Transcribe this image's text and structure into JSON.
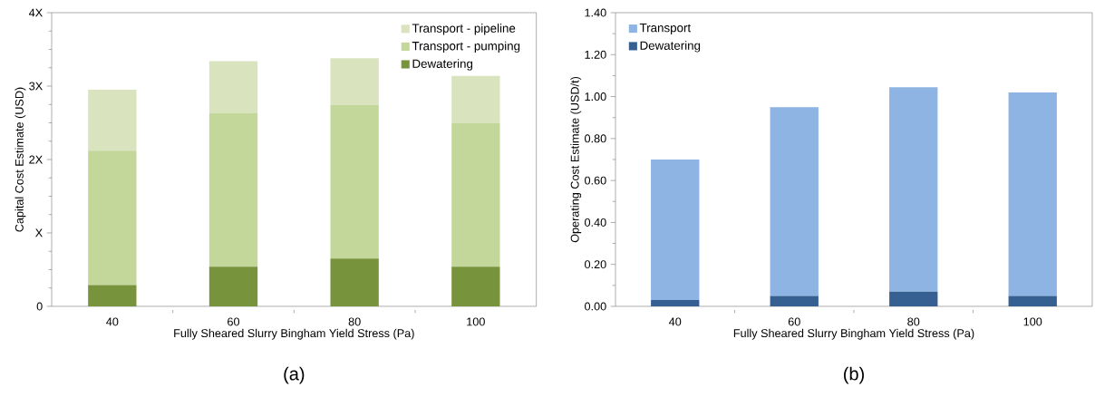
{
  "chart_data": [
    {
      "type": "bar",
      "stacked": true,
      "xlabel": "Fully Sheared Slurry Bingham Yield Stress (Pa)",
      "ylabel": "Capital Cost Estimate (USD)",
      "categories": [
        "40",
        "60",
        "80",
        "100"
      ],
      "series": [
        {
          "name": "Dewatering",
          "color": "#77933c",
          "values": [
            0.29,
            0.54,
            0.65,
            0.54
          ]
        },
        {
          "name": "Transport - pumping",
          "color": "#c4d79b",
          "values": [
            1.83,
            2.09,
            2.09,
            1.96
          ]
        },
        {
          "name": "Transport - pipeline",
          "color": "#d9e4bf",
          "values": [
            0.83,
            0.71,
            0.64,
            0.64
          ]
        }
      ],
      "ylim": [
        0,
        4
      ],
      "yticks": [
        0,
        {
          "value": 1,
          "label": "X"
        },
        {
          "value": 2,
          "label": "2X"
        },
        {
          "value": 3,
          "label": "3X"
        },
        {
          "value": 4,
          "label": "4X"
        }
      ],
      "legend": "top right",
      "annotations": [
        "(a)"
      ]
    },
    {
      "type": "bar",
      "stacked": true,
      "xlabel": "Fully Sheared Slurry Bingham Yield Stress (Pa)",
      "ylabel": "Operating Cost Estimate (USD/t)",
      "categories": [
        "40",
        "60",
        "80",
        "100"
      ],
      "series": [
        {
          "name": "Dewatering",
          "color": "#366092",
          "values": [
            0.03,
            0.05,
            0.07,
            0.05
          ]
        },
        {
          "name": "Transport",
          "color": "#8eb4e3",
          "values": [
            0.67,
            0.9,
            0.975,
            0.97
          ]
        }
      ],
      "ylim": [
        0,
        1.4
      ],
      "yticks": [
        {
          "value": 0,
          "label": "0.00"
        },
        {
          "value": 0.2,
          "label": "0.20"
        },
        {
          "value": 0.4,
          "label": "0.40"
        },
        {
          "value": 0.6,
          "label": "0.60"
        },
        {
          "value": 0.8,
          "label": "0.80"
        },
        {
          "value": 1.0,
          "label": "1.00"
        },
        {
          "value": 1.2,
          "label": "1.20"
        },
        {
          "value": 1.4,
          "label": "1.40"
        }
      ],
      "legend": "top left",
      "annotations": [
        "(b)"
      ]
    }
  ]
}
